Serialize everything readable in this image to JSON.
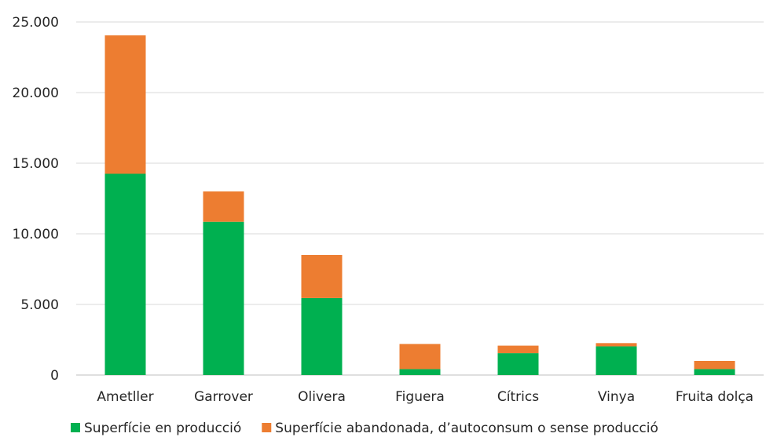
{
  "chart_data": {
    "type": "bar",
    "stacked": true,
    "title": "",
    "xlabel": "",
    "ylabel": "",
    "categories": [
      "Ametller",
      "Garrover",
      "Olivera",
      "Figuera",
      "Cítrics",
      "Vinya",
      "Fruita dolça"
    ],
    "series": [
      {
        "name": "Superfície en producció",
        "color": "#00b050",
        "values": [
          14250,
          10850,
          5450,
          420,
          1550,
          2030,
          420
        ]
      },
      {
        "name": "Superfície abandonada, d’autoconsum o sense producció",
        "color": "#ed7d31",
        "values": [
          9800,
          2150,
          3050,
          1780,
          530,
          230,
          580
        ]
      }
    ],
    "ylim": [
      0,
      25000
    ],
    "yticks": [
      0,
      5000,
      10000,
      15000,
      20000,
      25000
    ],
    "ytick_labels": [
      "0",
      "5.000",
      "10.000",
      "15.000",
      "20.000",
      "25.000"
    ],
    "grid": true,
    "legend_position": "bottom"
  }
}
